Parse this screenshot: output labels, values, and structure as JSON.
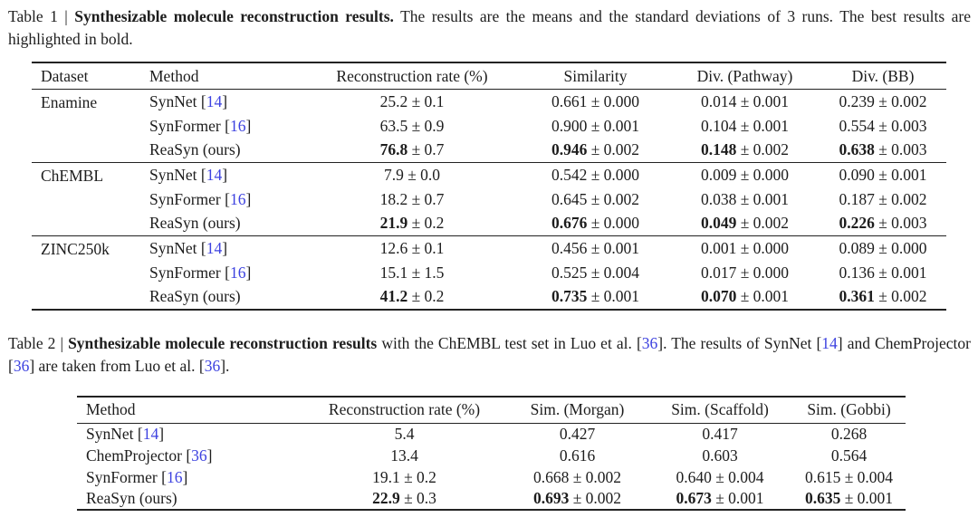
{
  "colors": {
    "text": "#1d1d1d",
    "rule": "#222222",
    "citation_blue": "#3d42e0",
    "background": "#ffffff"
  },
  "cap1": {
    "prefix": "Table 1 | ",
    "bold": "Synthesizable molecule reconstruction results.",
    "rest": " The results are the means and the standard deviations of 3 runs. The best results are highlighted in bold."
  },
  "cap2": {
    "s1": "Table 2 | ",
    "s2": "Synthesizable molecule reconstruction results",
    "s3": " with the ChEMBL test set in Luo et al. [",
    "c1": "36",
    "s4": "]. The results of SynNet [",
    "c2": "14",
    "s5": "] and ChemProjector [",
    "c3": "36",
    "s6": "] are taken from Luo et al. [",
    "c4": "36",
    "s7": "]."
  },
  "t1": {
    "headers": [
      "Dataset",
      "Method",
      "Reconstruction rate (%)",
      "Similarity",
      "Div. (Pathway)",
      "Div. (BB)"
    ],
    "groups": [
      {
        "dataset": "Enamine",
        "rows": [
          {
            "pre": "SynNet [",
            "cite": "14",
            "post": "]",
            "cells": [
              {
                "m": "25.2",
                "s": " ± 0.1",
                "b": false
              },
              {
                "m": "0.661",
                "s": " ± 0.000",
                "b": false
              },
              {
                "m": "0.014",
                "s": " ± 0.001",
                "b": false
              },
              {
                "m": "0.239",
                "s": " ± 0.002",
                "b": false
              }
            ]
          },
          {
            "pre": "SynFormer [",
            "cite": "16",
            "post": "]",
            "cells": [
              {
                "m": "63.5",
                "s": " ± 0.9",
                "b": false
              },
              {
                "m": "0.900",
                "s": " ± 0.001",
                "b": false
              },
              {
                "m": "0.104",
                "s": " ± 0.001",
                "b": false
              },
              {
                "m": "0.554",
                "s": " ± 0.003",
                "b": false
              }
            ]
          },
          {
            "pre": "ReaSyn (ours)",
            "cite": "",
            "post": "",
            "cells": [
              {
                "m": "76.8",
                "s": " ± 0.7",
                "b": true
              },
              {
                "m": "0.946",
                "s": " ± 0.002",
                "b": true
              },
              {
                "m": "0.148",
                "s": " ± 0.002",
                "b": true
              },
              {
                "m": "0.638",
                "s": " ± 0.003",
                "b": true
              }
            ]
          }
        ]
      },
      {
        "dataset": "ChEMBL",
        "rows": [
          {
            "pre": "SynNet [",
            "cite": "14",
            "post": "]",
            "cells": [
              {
                "m": "7.9",
                "s": " ± 0.0",
                "b": false
              },
              {
                "m": "0.542",
                "s": " ± 0.000",
                "b": false
              },
              {
                "m": "0.009",
                "s": " ± 0.000",
                "b": false
              },
              {
                "m": "0.090",
                "s": " ± 0.001",
                "b": false
              }
            ]
          },
          {
            "pre": "SynFormer [",
            "cite": "16",
            "post": "]",
            "cells": [
              {
                "m": "18.2",
                "s": " ± 0.7",
                "b": false
              },
              {
                "m": "0.645",
                "s": " ± 0.002",
                "b": false
              },
              {
                "m": "0.038",
                "s": " ± 0.001",
                "b": false
              },
              {
                "m": "0.187",
                "s": " ± 0.002",
                "b": false
              }
            ]
          },
          {
            "pre": "ReaSyn (ours)",
            "cite": "",
            "post": "",
            "cells": [
              {
                "m": "21.9",
                "s": " ± 0.2",
                "b": true
              },
              {
                "m": "0.676",
                "s": " ± 0.000",
                "b": true
              },
              {
                "m": "0.049",
                "s": " ± 0.002",
                "b": true
              },
              {
                "m": "0.226",
                "s": " ± 0.003",
                "b": true
              }
            ]
          }
        ]
      },
      {
        "dataset": "ZINC250k",
        "rows": [
          {
            "pre": "SynNet [",
            "cite": "14",
            "post": "]",
            "cells": [
              {
                "m": "12.6",
                "s": " ± 0.1",
                "b": false
              },
              {
                "m": "0.456",
                "s": " ± 0.001",
                "b": false
              },
              {
                "m": "0.001",
                "s": " ± 0.000",
                "b": false
              },
              {
                "m": "0.089",
                "s": " ± 0.000",
                "b": false
              }
            ]
          },
          {
            "pre": "SynFormer [",
            "cite": "16",
            "post": "]",
            "cells": [
              {
                "m": "15.1",
                "s": " ± 1.5",
                "b": false
              },
              {
                "m": "0.525",
                "s": " ± 0.004",
                "b": false
              },
              {
                "m": "0.017",
                "s": " ± 0.000",
                "b": false
              },
              {
                "m": "0.136",
                "s": " ± 0.001",
                "b": false
              }
            ]
          },
          {
            "pre": "ReaSyn (ours)",
            "cite": "",
            "post": "",
            "cells": [
              {
                "m": "41.2",
                "s": " ± 0.2",
                "b": true
              },
              {
                "m": "0.735",
                "s": " ± 0.001",
                "b": true
              },
              {
                "m": "0.070",
                "s": " ± 0.001",
                "b": true
              },
              {
                "m": "0.361",
                "s": " ± 0.002",
                "b": true
              }
            ]
          }
        ]
      }
    ]
  },
  "t2": {
    "headers": [
      "Method",
      "Reconstruction rate (%)",
      "Sim. (Morgan)",
      "Sim. (Scaffold)",
      "Sim. (Gobbi)"
    ],
    "rows": [
      {
        "pre": "SynNet [",
        "cite": "14",
        "post": "]",
        "cells": [
          {
            "m": "5.4",
            "s": "",
            "b": false
          },
          {
            "m": "0.427",
            "s": "",
            "b": false
          },
          {
            "m": "0.417",
            "s": "",
            "b": false
          },
          {
            "m": "0.268",
            "s": "",
            "b": false
          }
        ]
      },
      {
        "pre": "ChemProjector [",
        "cite": "36",
        "post": "]",
        "cells": [
          {
            "m": "13.4",
            "s": "",
            "b": false
          },
          {
            "m": "0.616",
            "s": "",
            "b": false
          },
          {
            "m": "0.603",
            "s": "",
            "b": false
          },
          {
            "m": "0.564",
            "s": "",
            "b": false
          }
        ]
      },
      {
        "pre": "SynFormer [",
        "cite": "16",
        "post": "]",
        "cells": [
          {
            "m": "19.1",
            "s": " ± 0.2",
            "b": false
          },
          {
            "m": "0.668",
            "s": " ± 0.002",
            "b": false
          },
          {
            "m": "0.640",
            "s": " ± 0.004",
            "b": false
          },
          {
            "m": "0.615",
            "s": " ± 0.004",
            "b": false
          }
        ]
      },
      {
        "pre": "ReaSyn (ours)",
        "cite": "",
        "post": "",
        "cells": [
          {
            "m": "22.9",
            "s": " ± 0.3",
            "b": true
          },
          {
            "m": "0.693",
            "s": " ± 0.002",
            "b": true
          },
          {
            "m": "0.673",
            "s": " ± 0.001",
            "b": true
          },
          {
            "m": "0.635",
            "s": " ± 0.001",
            "b": true
          }
        ]
      }
    ]
  }
}
